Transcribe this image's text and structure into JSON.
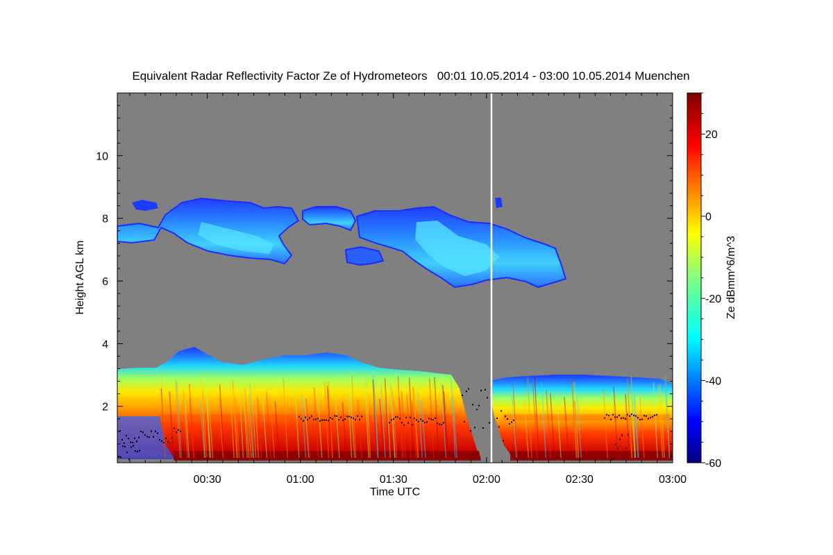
{
  "chart_data": {
    "type": "heatmap",
    "title": "Equivalent Radar Reflectivity Factor Ze of Hydrometeors   00:01 10.05.2014 - 03:00 10.05.2014 Muenchen",
    "xlabel": "Time UTC",
    "ylabel": "Height AGL km",
    "colorbar_label": "Ze dBmm^6/m^3",
    "x_range_minutes": [
      1,
      180
    ],
    "y_range_km": [
      0.2,
      12
    ],
    "x_ticks": [
      {
        "minutes": 30,
        "label": "00:30"
      },
      {
        "minutes": 60,
        "label": "01:00"
      },
      {
        "minutes": 90,
        "label": "01:30"
      },
      {
        "minutes": 120,
        "label": "02:00"
      },
      {
        "minutes": 150,
        "label": "02:30"
      },
      {
        "minutes": 180,
        "label": "03:00"
      }
    ],
    "y_ticks": [
      {
        "value": 2,
        "label": "2"
      },
      {
        "value": 4,
        "label": "4"
      },
      {
        "value": 6,
        "label": "6"
      },
      {
        "value": 8,
        "label": "8"
      },
      {
        "value": 10,
        "label": "10"
      }
    ],
    "colorbar_range": [
      -60,
      30
    ],
    "colorbar_ticks": [
      {
        "value": 20,
        "label": "20"
      },
      {
        "value": 0,
        "label": "0"
      },
      {
        "value": -20,
        "label": "-20"
      },
      {
        "value": -40,
        "label": "-40"
      },
      {
        "value": -60,
        "label": "-60"
      }
    ],
    "colormap": "jet",
    "background_color": "#808080",
    "marker_line": {
      "minutes": 122,
      "color": "#ffffff"
    },
    "regions": [
      {
        "name": "upper-cloud-1",
        "t": [
          1,
          59
        ],
        "h": [
          6.6,
          8.6
        ],
        "ze": -35
      },
      {
        "name": "upper-cloud-2",
        "t": [
          60,
          82
        ],
        "h": [
          7.6,
          8.5
        ],
        "ze": -38
      },
      {
        "name": "upper-cloud-3",
        "t": [
          75,
          90
        ],
        "h": [
          6.6,
          7.2
        ],
        "ze": -40
      },
      {
        "name": "upper-cloud-4",
        "t": [
          82,
          148
        ],
        "h": [
          5.8,
          8.5
        ],
        "ze": -30
      },
      {
        "name": "lower-precip-1",
        "t": [
          1,
          121
        ],
        "h": [
          0.2,
          3.9
        ],
        "ze": 15
      },
      {
        "name": "lower-precip-2",
        "t": [
          123,
          180
        ],
        "h": [
          0.2,
          3.1
        ],
        "ze": 15
      }
    ]
  }
}
